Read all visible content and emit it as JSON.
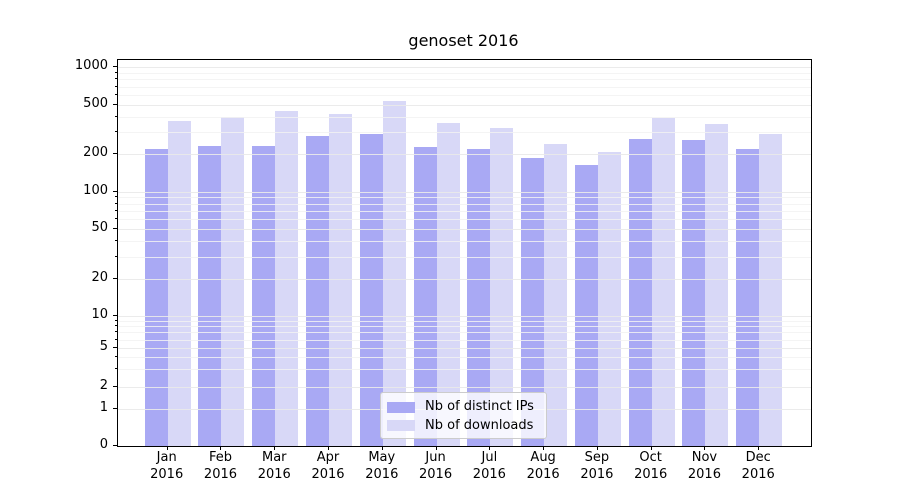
{
  "title": "genoset 2016",
  "colors": {
    "bar_ips": "#a9a9f4",
    "bar_downloads": "#d8d8f7",
    "grid_major": "#e9e9e9",
    "grid_minor": "#f2f2f2",
    "axis": "#000000",
    "legend_border": "#cccccc"
  },
  "chart_data": {
    "type": "bar",
    "title": "genoset 2016",
    "categories": [
      "Jan 2016",
      "Feb 2016",
      "Mar 2016",
      "Apr 2016",
      "May 2016",
      "Jun 2016",
      "Jul 2016",
      "Aug 2016",
      "Sep 2016",
      "Oct 2016",
      "Nov 2016",
      "Dec 2016"
    ],
    "month_labels": [
      "Jan",
      "Feb",
      "Mar",
      "Apr",
      "May",
      "Jun",
      "Jul",
      "Aug",
      "Sep",
      "Oct",
      "Nov",
      "Dec"
    ],
    "year_label": "2016",
    "series": [
      {
        "name": "Nb of distinct IPs",
        "color": "#a9a9f4",
        "values": [
          220,
          235,
          232,
          280,
          292,
          230,
          222,
          188,
          163,
          265,
          263,
          220
        ]
      },
      {
        "name": "Nb of downloads",
        "color": "#d8d8f7",
        "values": [
          370,
          400,
          450,
          420,
          540,
          355,
          325,
          240,
          210,
          395,
          350,
          290
        ]
      }
    ],
    "xlabel": "",
    "ylabel": "",
    "yscale": "symlog",
    "ylim": [
      0,
      1000
    ],
    "y_major_ticks": [
      0,
      1,
      2,
      5,
      10,
      20,
      50,
      100,
      200,
      500,
      1000
    ],
    "y_minor_ticks": [
      3,
      4,
      6,
      7,
      8,
      9,
      30,
      40,
      60,
      70,
      80,
      90,
      300,
      400,
      600,
      700,
      800,
      900
    ],
    "grid": "horizontal",
    "legend_position": "lower center"
  },
  "legend": {
    "entries": [
      {
        "label": "Nb of distinct IPs"
      },
      {
        "label": "Nb of downloads"
      }
    ]
  }
}
